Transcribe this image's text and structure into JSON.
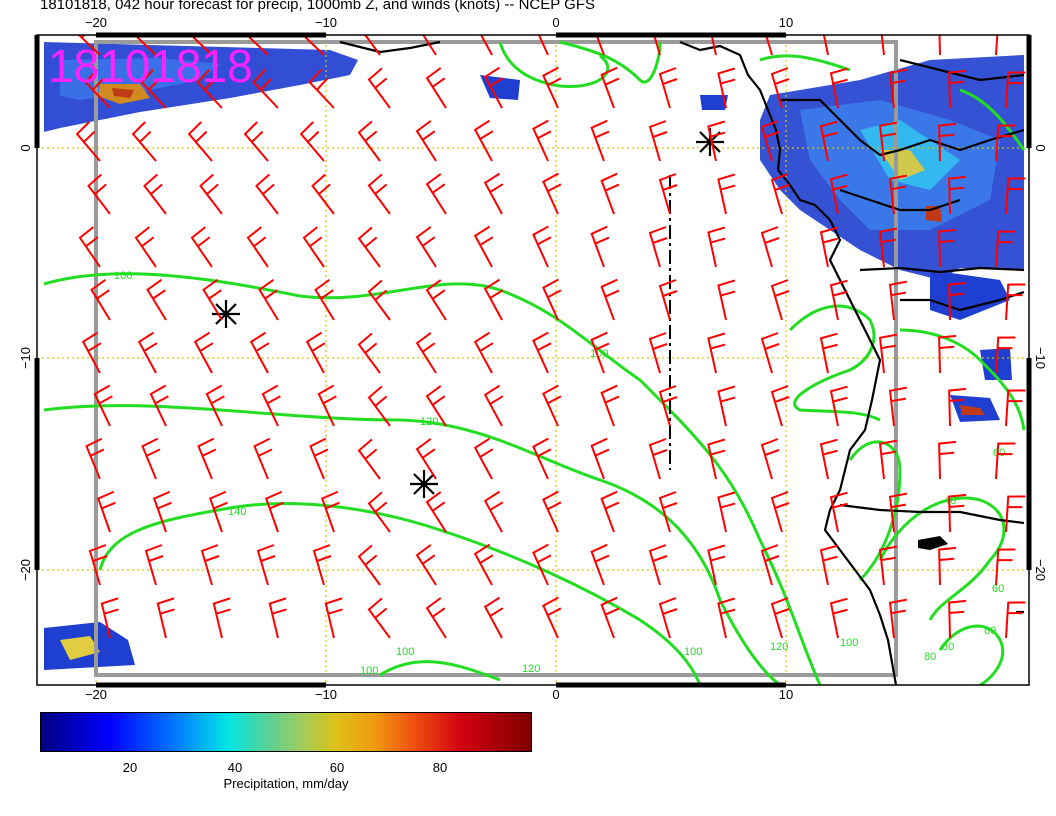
{
  "title": "18101818, 042 hour forecast for precip, 1000mb Z, and winds (knots) -- NCEP GFS",
  "stamp": "18101818",
  "map": {
    "x_axis_top": [
      "−20",
      "−10",
      "0",
      "10"
    ],
    "x_axis_bottom": [
      "−20",
      "−10",
      "0",
      "10"
    ],
    "y_axis_left": [
      "0",
      "−10",
      "−20"
    ],
    "y_axis_right": [
      "0",
      "−10",
      "−20"
    ],
    "contour_labels": [
      "100",
      "100",
      "120",
      "140",
      "100",
      "100",
      "120",
      "120",
      "100",
      "60",
      "40",
      "60",
      "60",
      "80",
      "80",
      "100"
    ],
    "colors": {
      "wind_barb": "#ff0000",
      "contour": "#22dd22",
      "stamp": "#ff22ff",
      "gridline": "#d8c800"
    }
  },
  "colorbar": {
    "ticks": [
      "20",
      "40",
      "60",
      "80"
    ],
    "label": "Precipitation, mm/day"
  }
}
